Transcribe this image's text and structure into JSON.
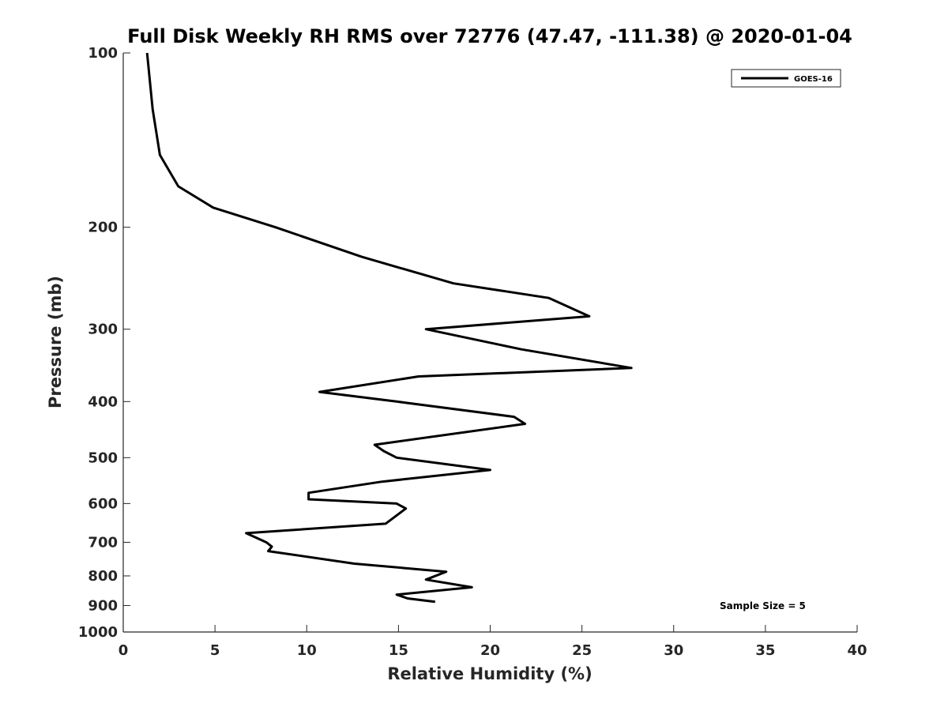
{
  "chart_data": {
    "type": "line",
    "title": "Full Disk Weekly RH RMS over 72776 (47.47, -111.38) @ 2020-01-04",
    "xlabel": "Relative Humidity (%)",
    "ylabel": "Pressure (mb)",
    "xlim": [
      0,
      40
    ],
    "ylim": [
      100,
      1000
    ],
    "yscale": "log",
    "y_reversed": true,
    "grid": false,
    "legend_position": "top-right",
    "x_ticks": [
      0,
      5,
      10,
      15,
      20,
      25,
      30,
      35,
      40
    ],
    "x_tick_labels": [
      "0",
      "5",
      "10",
      "15",
      "20",
      "25",
      "30",
      "35",
      "40"
    ],
    "y_ticks": [
      100,
      200,
      300,
      400,
      500,
      600,
      700,
      800,
      900,
      1000
    ],
    "y_tick_labels": [
      "100",
      "200",
      "300",
      "400",
      "500",
      "600",
      "700",
      "800",
      "900",
      "1000"
    ],
    "series": [
      {
        "name": "GOES-16",
        "color": "#000000",
        "x": [
          1.3,
          1.6,
          2.0,
          3.0,
          4.9,
          8.3,
          13.0,
          18.0,
          23.2,
          25.4,
          16.5,
          21.7,
          27.7,
          16.1,
          10.7,
          14.9,
          21.3,
          21.9,
          13.7,
          14.2,
          14.9,
          20.0,
          14.1,
          10.1,
          10.1,
          14.9,
          15.4,
          14.3,
          6.7,
          7.8,
          8.1,
          7.9,
          12.6,
          17.6,
          16.5,
          19.0,
          14.9,
          15.5,
          17.0
        ],
        "y": [
          100,
          125,
          150,
          170,
          185,
          200,
          225,
          250,
          265,
          285,
          300,
          325,
          350,
          362,
          385,
          400,
          425,
          437,
          475,
          487,
          500,
          525,
          550,
          575,
          590,
          600,
          612,
          650,
          675,
          700,
          712,
          725,
          762,
          787,
          812,
          837,
          862,
          875,
          887
        ]
      }
    ],
    "annotations": [
      {
        "text": "Sample Size = 5",
        "position": "bottom-right"
      }
    ]
  }
}
